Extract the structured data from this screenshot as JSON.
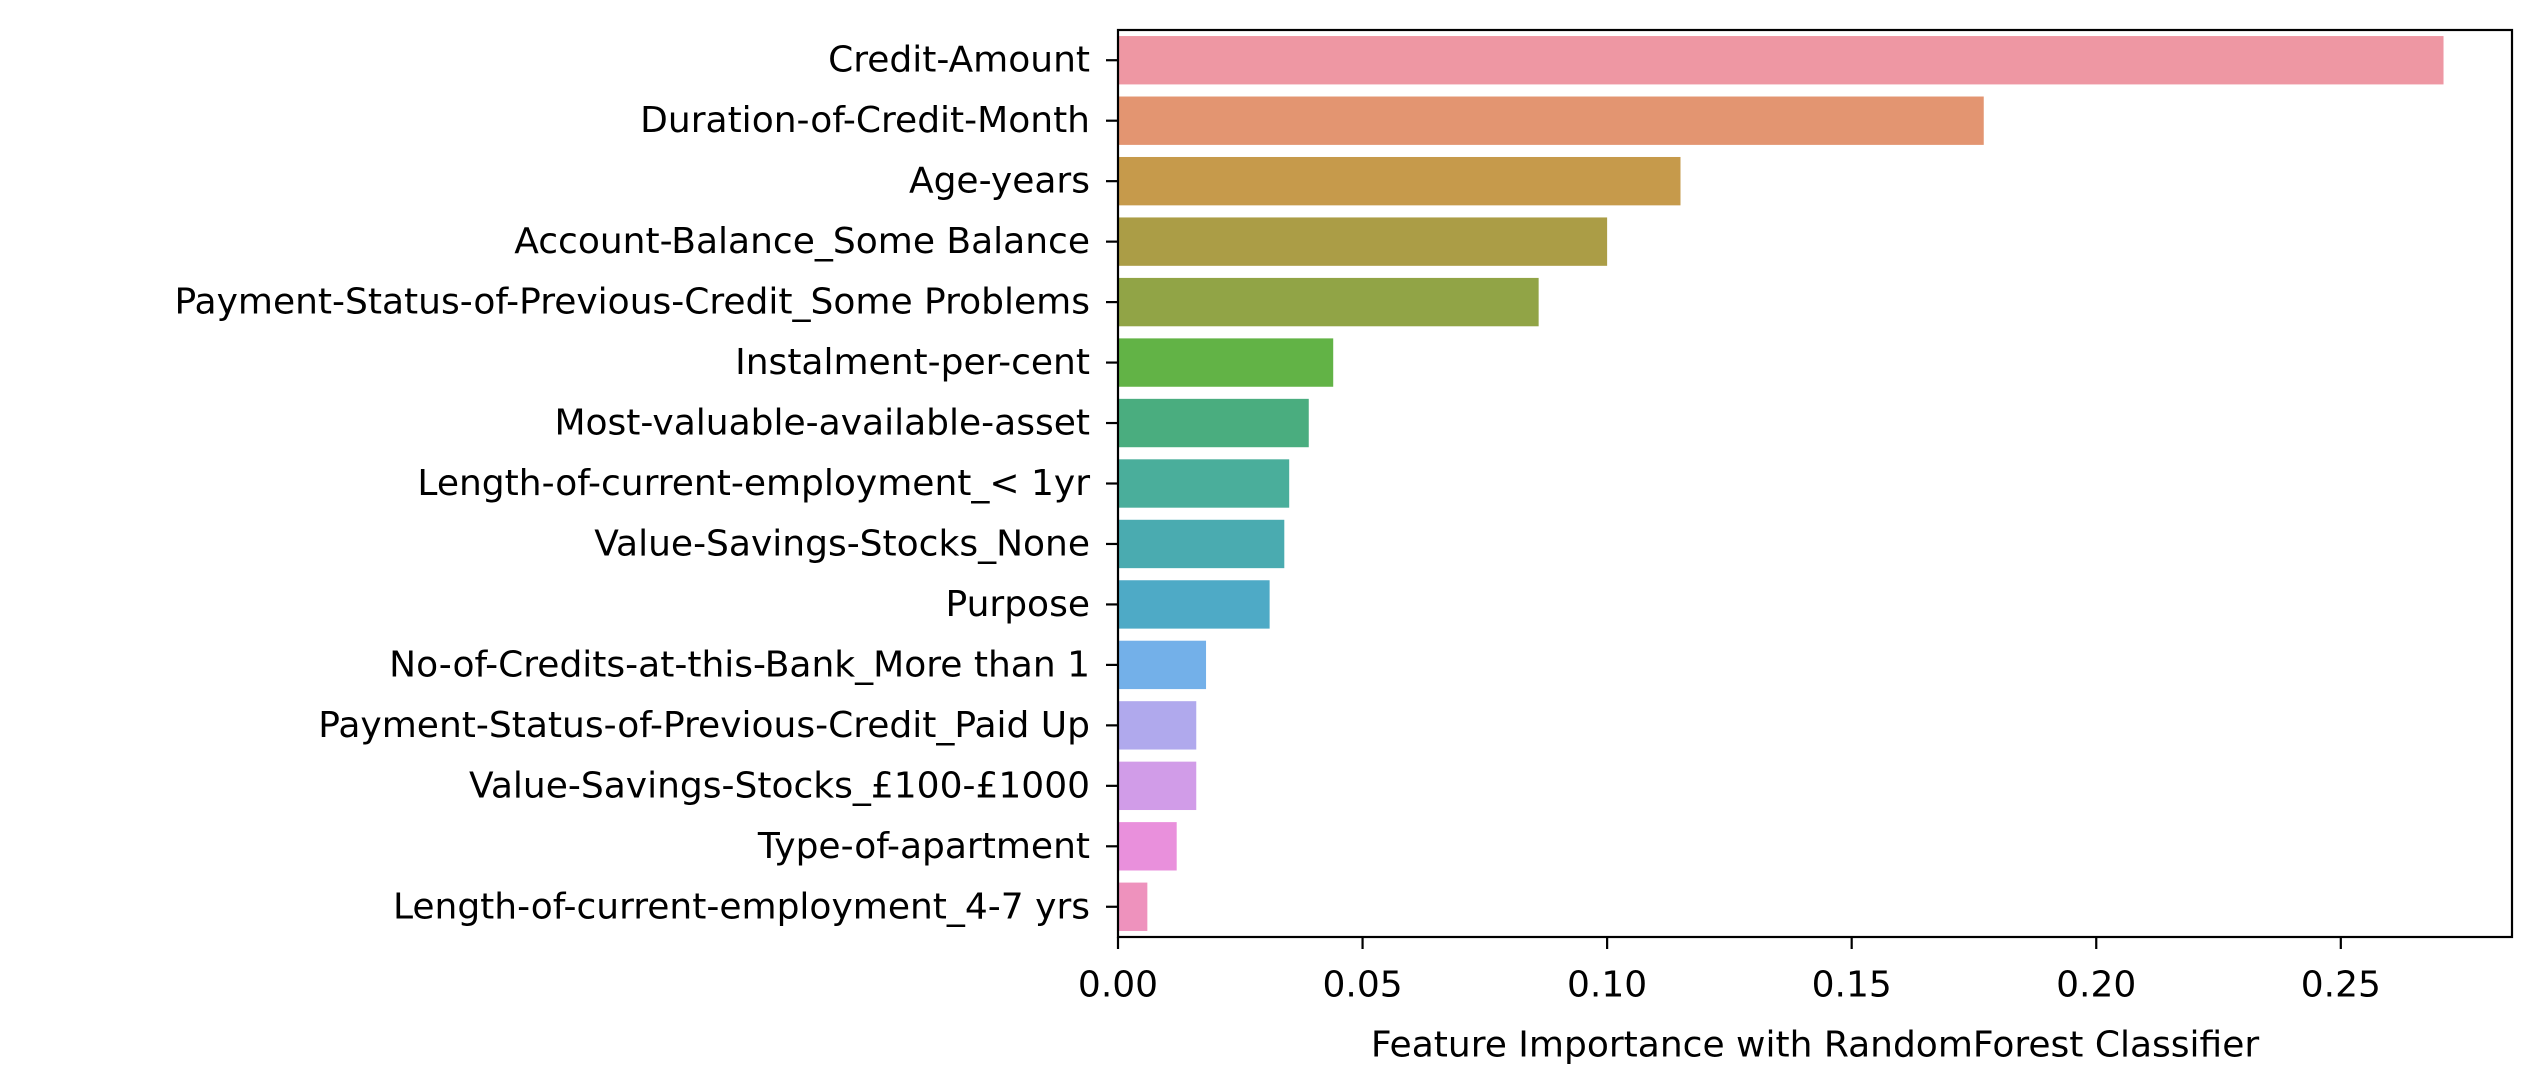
{
  "chart_data": {
    "type": "bar",
    "orientation": "horizontal",
    "title": "",
    "xlabel": "Feature Importance with RandomForest Classifier",
    "ylabel": "",
    "xlim": [
      0,
      0.285
    ],
    "xticks": [
      0.0,
      0.05,
      0.1,
      0.15,
      0.2,
      0.25
    ],
    "xtick_labels": [
      "0.00",
      "0.05",
      "0.10",
      "0.15",
      "0.20",
      "0.25"
    ],
    "grid": false,
    "legend": "none",
    "categories": [
      "Credit-Amount",
      "Duration-of-Credit-Month",
      "Age-years",
      "Account-Balance_Some Balance",
      "Payment-Status-of-Previous-Credit_Some Problems",
      "Instalment-per-cent",
      "Most-valuable-available-asset",
      "Length-of-current-employment_< 1yr",
      "Value-Savings-Stocks_None",
      "Purpose",
      "No-of-Credits-at-this-Bank_More than 1",
      "Payment-Status-of-Previous-Credit_Paid Up",
      "Value-Savings-Stocks_£100-£1000",
      "Type-of-apartment",
      "Length-of-current-employment_4-7 yrs"
    ],
    "values": [
      0.271,
      0.177,
      0.115,
      0.1,
      0.086,
      0.044,
      0.039,
      0.035,
      0.034,
      0.031,
      0.018,
      0.016,
      0.016,
      0.012,
      0.006
    ],
    "colors": [
      "#ee97a3",
      "#e39571",
      "#c69a4b",
      "#ab9d46",
      "#91a446",
      "#62b346",
      "#4aad7f",
      "#4aae9b",
      "#4aabb0",
      "#4eaac6",
      "#73b0e9",
      "#b0a9ed",
      "#d19ce8",
      "#e990dc",
      "#ee92bd"
    ]
  }
}
